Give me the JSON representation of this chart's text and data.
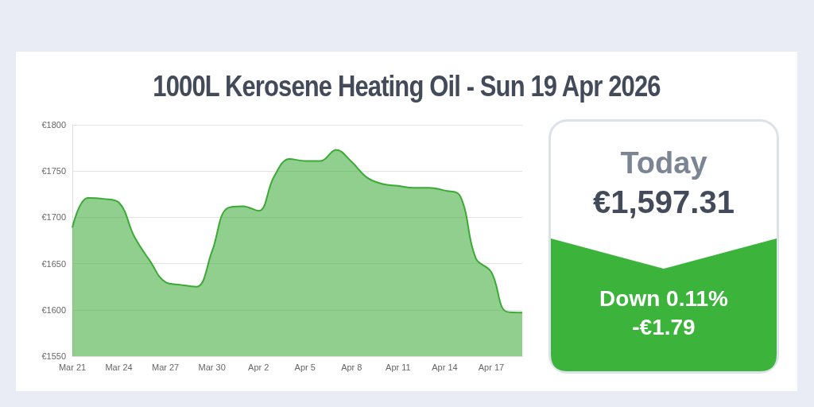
{
  "chart_data": {
    "type": "area",
    "title": "1000L Kerosene Heating Oil - Sun 19 Apr 2026",
    "categories": [
      "Mar 21",
      null,
      null,
      "Mar 24",
      null,
      null,
      "Mar 27",
      null,
      null,
      "Mar 30",
      null,
      null,
      "Apr 2",
      null,
      null,
      "Apr 5",
      null,
      null,
      "Apr 8",
      null,
      null,
      "Apr 11",
      null,
      null,
      "Apr 14",
      null,
      null,
      "Apr 17",
      null,
      null
    ],
    "series": [
      {
        "color": "#3aaa35",
        "values": [
          1689,
          1721,
          1720,
          1716,
          1679,
          1653,
          1630,
          1627,
          1625,
          1663,
          1710,
          1712,
          1707,
          1744,
          1763,
          1761,
          1761,
          1773,
          1760,
          1743,
          1736,
          1734,
          1732,
          1732,
          1729,
          1723,
          1656,
          1641,
          1598,
          1597
        ]
      }
    ],
    "ylim": [
      1550,
      1800
    ],
    "yticks": [
      {
        "value": 1550,
        "label": "€1550"
      },
      {
        "value": 1600,
        "label": "€1600"
      },
      {
        "value": 1650,
        "label": "€1650"
      },
      {
        "value": 1700,
        "label": "€1700"
      },
      {
        "value": 1750,
        "label": "€1750"
      },
      {
        "value": 1800,
        "label": "€1800"
      }
    ],
    "grid": "y",
    "marker": "none",
    "annotations": [
      "Today",
      "€1,597.31",
      "Down 0.11%",
      "-€1.79"
    ]
  }
}
